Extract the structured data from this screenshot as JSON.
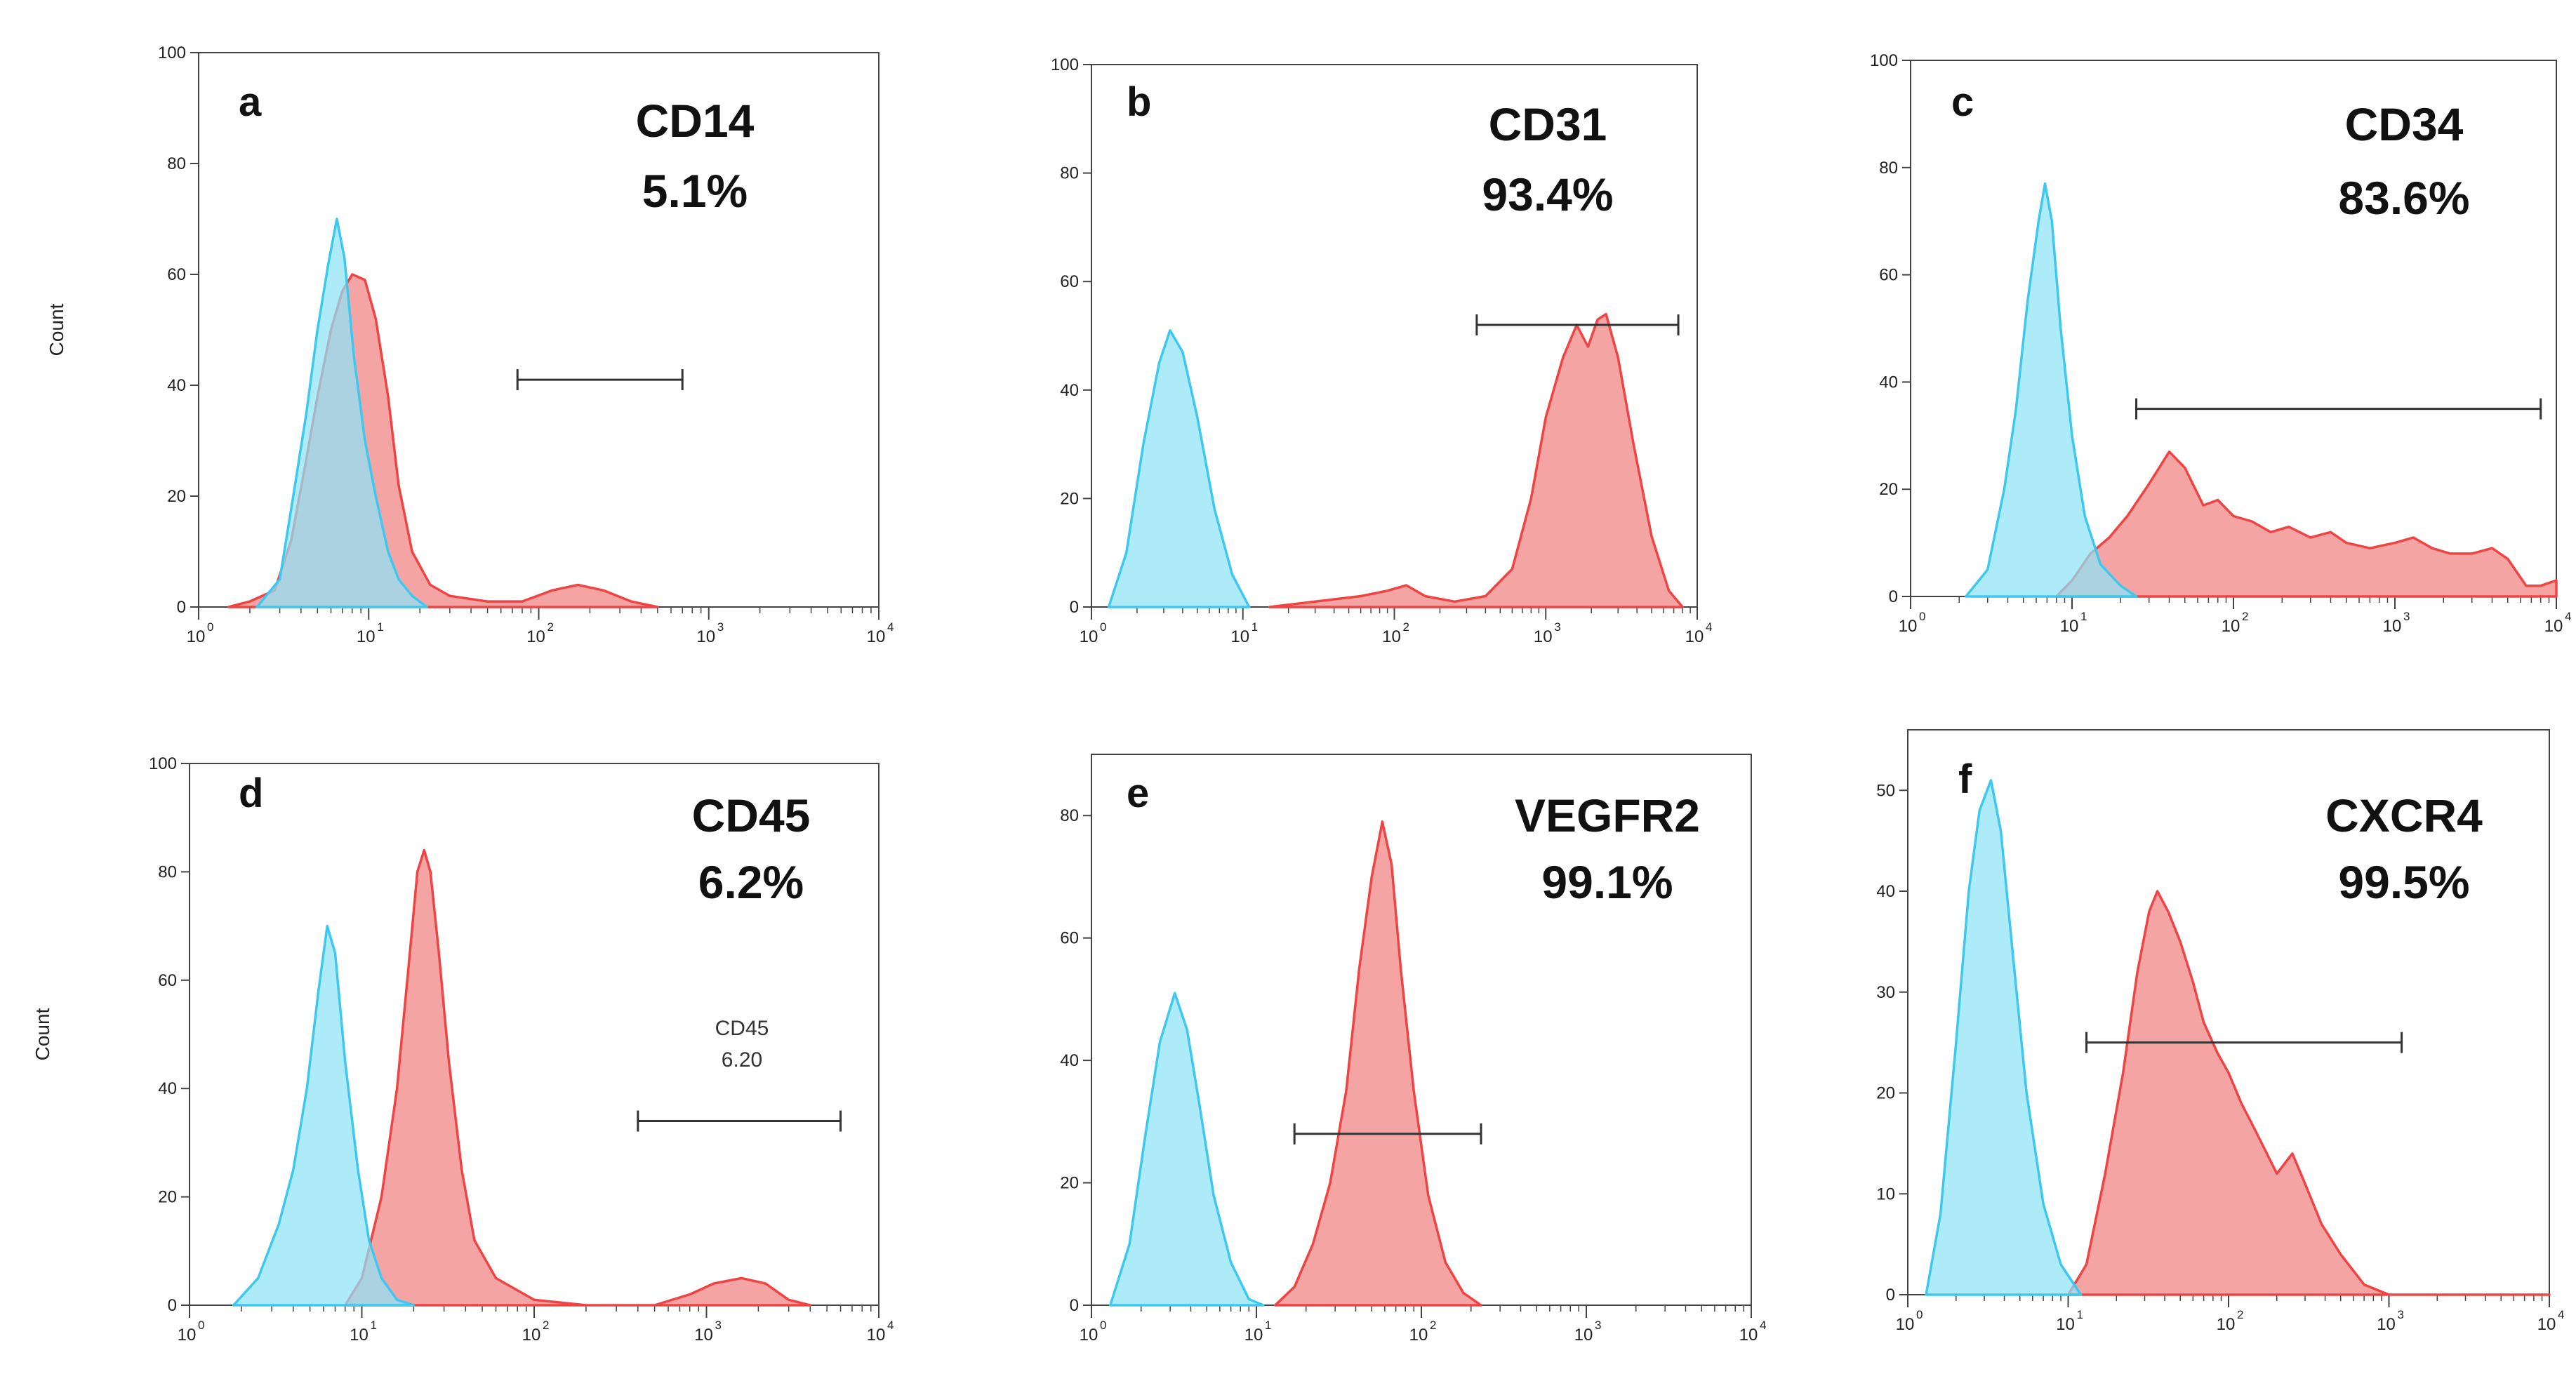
{
  "chart_data": [
    {
      "type": "histogram-overlay",
      "panel": "a",
      "marker": "CD14",
      "percent": "5.1%",
      "xscale": "log",
      "xlim": [
        1,
        10000
      ],
      "ylim": [
        0,
        100
      ],
      "yticks": [
        0,
        20,
        40,
        60,
        80,
        100
      ],
      "ylabel": "Count",
      "gate": [
        75,
        700
      ],
      "colors": {
        "control": "#3ec8f0",
        "control_fill": "#8fe3f7",
        "sample": "#ee4444",
        "sample_fill": "#f49a9a"
      },
      "series": [
        {
          "name": "control",
          "points": [
            [
              2.2,
              0
            ],
            [
              3,
              5
            ],
            [
              3.6,
              20
            ],
            [
              4.3,
              35
            ],
            [
              5,
              50
            ],
            [
              5.8,
              62
            ],
            [
              6.5,
              70
            ],
            [
              7.2,
              63
            ],
            [
              8.2,
              45
            ],
            [
              9.5,
              30
            ],
            [
              11,
              20
            ],
            [
              13,
              10
            ],
            [
              15,
              5
            ],
            [
              18,
              2
            ],
            [
              22,
              0
            ]
          ]
        },
        {
          "name": "sample",
          "points": [
            [
              1.5,
              0
            ],
            [
              2,
              1
            ],
            [
              2.8,
              3
            ],
            [
              3.5,
              12
            ],
            [
              4.2,
              25
            ],
            [
              5,
              38
            ],
            [
              6,
              50
            ],
            [
              7,
              57
            ],
            [
              8,
              60
            ],
            [
              9.5,
              59
            ],
            [
              11,
              52
            ],
            [
              13,
              38
            ],
            [
              15,
              22
            ],
            [
              18,
              10
            ],
            [
              23,
              4
            ],
            [
              30,
              2
            ],
            [
              50,
              1
            ],
            [
              80,
              1
            ],
            [
              120,
              3
            ],
            [
              170,
              4
            ],
            [
              240,
              3
            ],
            [
              350,
              1
            ],
            [
              500,
              0
            ]
          ]
        }
      ]
    },
    {
      "type": "histogram-overlay",
      "panel": "b",
      "marker": "CD31",
      "percent": "93.4%",
      "xscale": "log",
      "xlim": [
        1,
        10000
      ],
      "ylim": [
        0,
        100
      ],
      "yticks": [
        0,
        20,
        40,
        60,
        80,
        100
      ],
      "ylabel": "",
      "gate": [
        350,
        7500
      ],
      "colors": {
        "control": "#3ec8f0",
        "control_fill": "#8fe3f7",
        "sample": "#ee4444",
        "sample_fill": "#f49a9a"
      },
      "series": [
        {
          "name": "control",
          "points": [
            [
              1.3,
              0
            ],
            [
              1.7,
              10
            ],
            [
              2.2,
              30
            ],
            [
              2.8,
              45
            ],
            [
              3.3,
              51
            ],
            [
              4,
              47
            ],
            [
              5,
              35
            ],
            [
              6.5,
              18
            ],
            [
              8.5,
              6
            ],
            [
              11,
              0
            ]
          ]
        },
        {
          "name": "sample",
          "points": [
            [
              15,
              0
            ],
            [
              30,
              1
            ],
            [
              60,
              2
            ],
            [
              90,
              3
            ],
            [
              120,
              4
            ],
            [
              160,
              2
            ],
            [
              250,
              1
            ],
            [
              400,
              2
            ],
            [
              600,
              7
            ],
            [
              800,
              20
            ],
            [
              1000,
              35
            ],
            [
              1300,
              46
            ],
            [
              1600,
              52
            ],
            [
              1900,
              48
            ],
            [
              2200,
              53
            ],
            [
              2500,
              54
            ],
            [
              3000,
              46
            ],
            [
              3800,
              30
            ],
            [
              5000,
              13
            ],
            [
              6500,
              3
            ],
            [
              8000,
              0
            ]
          ]
        }
      ]
    },
    {
      "type": "histogram-overlay",
      "panel": "c",
      "marker": "CD34",
      "percent": "83.6%",
      "xscale": "log",
      "xlim": [
        1,
        10000
      ],
      "ylim": [
        0,
        100
      ],
      "yticks": [
        0,
        20,
        40,
        60,
        80,
        100
      ],
      "ylabel": "",
      "gate": [
        25,
        8000
      ],
      "colors": {
        "control": "#3ec8f0",
        "control_fill": "#8fe3f7",
        "sample": "#ee4444",
        "sample_fill": "#f49a9a"
      },
      "series": [
        {
          "name": "control",
          "points": [
            [
              2.2,
              0
            ],
            [
              3,
              5
            ],
            [
              3.8,
              20
            ],
            [
              4.5,
              35
            ],
            [
              5.3,
              55
            ],
            [
              6.2,
              70
            ],
            [
              6.8,
              77
            ],
            [
              7.5,
              70
            ],
            [
              8.5,
              50
            ],
            [
              10,
              30
            ],
            [
              12,
              15
            ],
            [
              15,
              6
            ],
            [
              20,
              2
            ],
            [
              25,
              0
            ]
          ]
        },
        {
          "name": "sample",
          "points": [
            [
              8,
              0
            ],
            [
              10,
              3
            ],
            [
              13,
              8
            ],
            [
              17,
              11
            ],
            [
              22,
              15
            ],
            [
              30,
              21
            ],
            [
              40,
              27
            ],
            [
              50,
              24
            ],
            [
              65,
              17
            ],
            [
              80,
              18
            ],
            [
              100,
              15
            ],
            [
              130,
              14
            ],
            [
              170,
              12
            ],
            [
              220,
              13
            ],
            [
              300,
              11
            ],
            [
              400,
              12
            ],
            [
              500,
              10
            ],
            [
              700,
              9
            ],
            [
              1000,
              10
            ],
            [
              1300,
              11
            ],
            [
              1700,
              9
            ],
            [
              2200,
              8
            ],
            [
              3000,
              8
            ],
            [
              4000,
              9
            ],
            [
              5000,
              7
            ],
            [
              6500,
              2
            ],
            [
              8000,
              2
            ],
            [
              10000,
              3
            ]
          ]
        }
      ]
    },
    {
      "type": "histogram-overlay",
      "panel": "d",
      "marker": "CD45",
      "percent": "6.2%",
      "xscale": "log",
      "xlim": [
        1,
        10000
      ],
      "ylim": [
        0,
        100
      ],
      "yticks": [
        0,
        20,
        40,
        60,
        80,
        100
      ],
      "ylabel": "Count",
      "gate": [
        400,
        6000
      ],
      "gate_label": [
        "CD45",
        "6.20"
      ],
      "colors": {
        "control": "#3ec8f0",
        "control_fill": "#8fe3f7",
        "sample": "#ee4444",
        "sample_fill": "#f49a9a"
      },
      "series": [
        {
          "name": "control",
          "points": [
            [
              1.8,
              0
            ],
            [
              2.5,
              5
            ],
            [
              3.3,
              15
            ],
            [
              4,
              25
            ],
            [
              4.8,
              40
            ],
            [
              5.6,
              58
            ],
            [
              6.3,
              70
            ],
            [
              7,
              65
            ],
            [
              8,
              45
            ],
            [
              9.5,
              25
            ],
            [
              11,
              12
            ],
            [
              13,
              5
            ],
            [
              16,
              1
            ],
            [
              20,
              0
            ]
          ]
        },
        {
          "name": "sample",
          "points": [
            [
              8,
              0
            ],
            [
              10,
              5
            ],
            [
              13,
              20
            ],
            [
              16,
              40
            ],
            [
              19,
              65
            ],
            [
              21,
              80
            ],
            [
              23,
              84
            ],
            [
              25,
              80
            ],
            [
              28,
              65
            ],
            [
              32,
              45
            ],
            [
              38,
              25
            ],
            [
              45,
              12
            ],
            [
              60,
              5
            ],
            [
              100,
              1
            ],
            [
              200,
              0
            ],
            [
              500,
              0
            ],
            [
              800,
              2
            ],
            [
              1100,
              4
            ],
            [
              1600,
              5
            ],
            [
              2200,
              4
            ],
            [
              3000,
              1
            ],
            [
              4000,
              0
            ]
          ]
        }
      ]
    },
    {
      "type": "histogram-overlay",
      "panel": "e",
      "marker": "VEGFR2",
      "percent": "99.1%",
      "xscale": "log",
      "xlim": [
        1,
        10000
      ],
      "ylim": [
        0,
        90
      ],
      "yticks": [
        0,
        20,
        40,
        60,
        80
      ],
      "ylabel": "",
      "gate": [
        17,
        230
      ],
      "colors": {
        "control": "#3ec8f0",
        "control_fill": "#8fe3f7",
        "sample": "#ee4444",
        "sample_fill": "#f49a9a"
      },
      "series": [
        {
          "name": "control",
          "points": [
            [
              1.3,
              0
            ],
            [
              1.7,
              10
            ],
            [
              2.1,
              27
            ],
            [
              2.6,
              43
            ],
            [
              3.2,
              51
            ],
            [
              3.8,
              45
            ],
            [
              4.5,
              33
            ],
            [
              5.5,
              18
            ],
            [
              7,
              7
            ],
            [
              9,
              1
            ],
            [
              11,
              0
            ]
          ]
        },
        {
          "name": "sample",
          "points": [
            [
              13,
              0
            ],
            [
              17,
              3
            ],
            [
              22,
              10
            ],
            [
              28,
              20
            ],
            [
              35,
              35
            ],
            [
              42,
              55
            ],
            [
              50,
              70
            ],
            [
              58,
              79
            ],
            [
              66,
              72
            ],
            [
              75,
              55
            ],
            [
              90,
              35
            ],
            [
              110,
              18
            ],
            [
              140,
              7
            ],
            [
              180,
              2
            ],
            [
              230,
              0
            ]
          ]
        }
      ]
    },
    {
      "type": "histogram-overlay",
      "panel": "f",
      "marker": "CXCR4",
      "percent": "99.5%",
      "xscale": "log",
      "xlim": [
        1,
        10000
      ],
      "ylim": [
        0,
        56
      ],
      "yticks": [
        0,
        10,
        20,
        30,
        40,
        50
      ],
      "ylabel": "",
      "gate": [
        13,
        1200
      ],
      "colors": {
        "control": "#3ec8f0",
        "control_fill": "#8fe3f7",
        "sample": "#ee4444",
        "sample_fill": "#f49a9a"
      },
      "series": [
        {
          "name": "control",
          "points": [
            [
              1.3,
              0
            ],
            [
              1.6,
              8
            ],
            [
              2,
              25
            ],
            [
              2.4,
              40
            ],
            [
              2.8,
              48
            ],
            [
              3.3,
              51
            ],
            [
              3.8,
              46
            ],
            [
              4.5,
              34
            ],
            [
              5.5,
              20
            ],
            [
              7,
              9
            ],
            [
              9,
              3
            ],
            [
              12,
              0
            ]
          ]
        },
        {
          "name": "sample",
          "points": [
            [
              10,
              0
            ],
            [
              13,
              3
            ],
            [
              17,
              12
            ],
            [
              22,
              22
            ],
            [
              27,
              32
            ],
            [
              32,
              38
            ],
            [
              36,
              40
            ],
            [
              42,
              38
            ],
            [
              50,
              35
            ],
            [
              60,
              31
            ],
            [
              70,
              27
            ],
            [
              85,
              24
            ],
            [
              100,
              22
            ],
            [
              120,
              19
            ],
            [
              150,
              16
            ],
            [
              200,
              12
            ],
            [
              250,
              14
            ],
            [
              300,
              11
            ],
            [
              380,
              7
            ],
            [
              500,
              4
            ],
            [
              700,
              1
            ],
            [
              1000,
              0
            ],
            [
              10000,
              0
            ]
          ]
        }
      ]
    }
  ]
}
